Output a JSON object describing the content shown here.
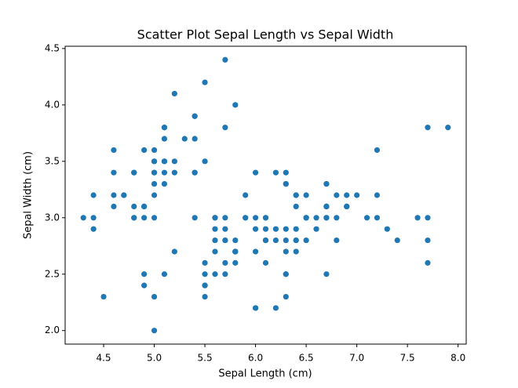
{
  "chart_data": {
    "type": "scatter",
    "title": "Scatter Plot Sepal Length vs Sepal Width",
    "x_label": "Sepal Length (cm)",
    "y_label": "Sepal Width (cm)",
    "color": "#1f77b4",
    "grid": false,
    "x": [
      5.1,
      4.9,
      4.7,
      4.6,
      5.0,
      5.4,
      4.6,
      5.0,
      4.4,
      4.9,
      5.4,
      4.8,
      4.8,
      4.3,
      5.8,
      5.7,
      5.4,
      5.1,
      5.7,
      5.1,
      5.4,
      5.1,
      4.6,
      5.1,
      4.8,
      5.0,
      5.0,
      5.2,
      5.2,
      4.7,
      4.8,
      5.4,
      5.2,
      5.5,
      4.9,
      5.0,
      5.5,
      4.9,
      4.4,
      5.1,
      5.0,
      4.5,
      4.4,
      5.0,
      5.1,
      4.8,
      5.1,
      4.6,
      5.3,
      5.0,
      7.0,
      6.4,
      6.9,
      5.5,
      6.5,
      5.7,
      6.3,
      4.9,
      6.6,
      5.2,
      5.0,
      5.9,
      6.0,
      6.1,
      5.6,
      6.7,
      5.6,
      5.8,
      6.2,
      5.6,
      5.9,
      6.1,
      6.3,
      6.1,
      6.4,
      6.6,
      6.8,
      6.7,
      6.0,
      5.7,
      5.5,
      5.5,
      5.8,
      6.0,
      5.4,
      6.0,
      6.7,
      6.3,
      5.6,
      5.5,
      5.5,
      6.1,
      5.8,
      5.0,
      5.6,
      5.7,
      5.7,
      6.2,
      5.1,
      5.7,
      6.3,
      5.8,
      7.1,
      6.3,
      6.5,
      7.6,
      4.9,
      7.3,
      6.7,
      7.2,
      6.5,
      6.4,
      6.8,
      5.7,
      5.8,
      6.4,
      6.5,
      7.7,
      7.7,
      6.0,
      6.9,
      5.6,
      7.7,
      6.3,
      6.7,
      7.2,
      6.2,
      6.1,
      6.4,
      7.2,
      7.4,
      7.9,
      6.4,
      6.3,
      6.1,
      7.7,
      6.3,
      6.4,
      6.0,
      6.9,
      6.7,
      6.9,
      5.8,
      6.8,
      6.7,
      6.7,
      6.3,
      6.5,
      6.2,
      5.9
    ],
    "values": [
      3.5,
      3.0,
      3.2,
      3.1,
      3.6,
      3.9,
      3.4,
      3.4,
      2.9,
      3.1,
      3.7,
      3.4,
      3.0,
      3.0,
      4.0,
      4.4,
      3.9,
      3.5,
      3.8,
      3.8,
      3.4,
      3.7,
      3.6,
      3.3,
      3.4,
      3.0,
      3.4,
      3.5,
      3.4,
      3.2,
      3.1,
      3.4,
      4.1,
      4.2,
      3.1,
      3.2,
      3.5,
      3.6,
      3.0,
      3.4,
      3.5,
      2.3,
      3.2,
      3.5,
      3.8,
      3.0,
      3.8,
      3.2,
      3.7,
      3.3,
      3.2,
      3.2,
      3.1,
      2.3,
      2.8,
      2.8,
      3.3,
      2.4,
      2.9,
      2.7,
      2.0,
      3.0,
      2.2,
      2.9,
      2.9,
      3.1,
      3.0,
      2.7,
      2.2,
      2.5,
      3.2,
      2.8,
      2.5,
      2.8,
      2.9,
      3.0,
      2.8,
      3.0,
      2.9,
      2.6,
      2.4,
      2.4,
      2.7,
      2.7,
      3.0,
      3.4,
      3.1,
      2.3,
      3.0,
      2.5,
      2.6,
      3.0,
      2.6,
      2.3,
      2.7,
      3.0,
      2.9,
      2.9,
      2.5,
      2.8,
      3.3,
      2.7,
      3.0,
      2.9,
      3.0,
      3.0,
      2.5,
      2.9,
      2.5,
      3.6,
      3.2,
      2.7,
      3.0,
      2.5,
      2.8,
      3.2,
      3.0,
      3.8,
      2.6,
      2.2,
      3.2,
      2.8,
      2.8,
      2.7,
      3.3,
      3.2,
      2.8,
      3.0,
      2.8,
      3.0,
      2.8,
      3.8,
      2.8,
      2.8,
      2.6,
      3.0,
      3.4,
      3.1,
      3.0,
      3.1,
      3.1,
      3.1,
      2.7,
      3.2,
      3.3,
      3.0,
      2.5,
      3.0,
      3.4,
      3.0
    ],
    "xlim": [
      4.12,
      8.08
    ],
    "ylim": [
      1.88,
      4.52
    ],
    "xticks": [
      4.5,
      {
        "value": 5,
        "label": "5.0"
      },
      5.5,
      {
        "value": 6,
        "label": "6.0"
      },
      6.5,
      {
        "value": 7,
        "label": "7.0"
      },
      7.5,
      {
        "value": 8,
        "label": "8.0"
      }
    ],
    "yticks": [
      {
        "value": 2,
        "label": "2.0"
      },
      2.5,
      {
        "value": 3,
        "label": "3.0"
      },
      3.5,
      {
        "value": 4,
        "label": "4.0"
      },
      4.5
    ]
  }
}
